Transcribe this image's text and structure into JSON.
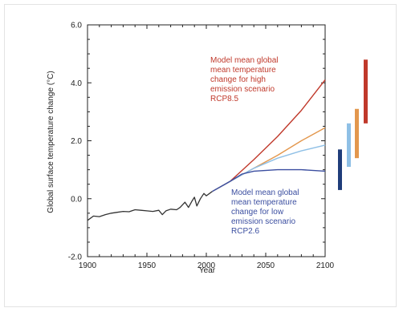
{
  "chart_data": {
    "type": "line",
    "title": "",
    "xlabel": "Year",
    "ylabel": "Global surface temperature change (°C)",
    "xlim": [
      1900,
      2100
    ],
    "ylim": [
      -2.0,
      6.0
    ],
    "x_ticks": [
      1900,
      1950,
      2000,
      2050,
      2100
    ],
    "y_ticks": [
      -2.0,
      0.0,
      2.0,
      4.0,
      6.0
    ],
    "x_tick_labels": [
      "1900",
      "1950",
      "2000",
      "2050",
      "2100"
    ],
    "y_tick_labels": [
      "-2.0",
      "0.0",
      "2.0",
      "4.0",
      "6.0"
    ],
    "grid": false,
    "series": [
      {
        "name": "",
        "color": "#333333",
        "points": [
          [
            1900,
            -0.75
          ],
          [
            1905,
            -0.6
          ],
          [
            1910,
            -0.62
          ],
          [
            1915,
            -0.55
          ],
          [
            1920,
            -0.5
          ],
          [
            1925,
            -0.47
          ],
          [
            1930,
            -0.44
          ],
          [
            1935,
            -0.45
          ],
          [
            1940,
            -0.38
          ],
          [
            1945,
            -0.4
          ],
          [
            1950,
            -0.42
          ],
          [
            1955,
            -0.44
          ],
          [
            1960,
            -0.4
          ],
          [
            1963,
            -0.55
          ],
          [
            1966,
            -0.42
          ],
          [
            1970,
            -0.36
          ],
          [
            1975,
            -0.38
          ],
          [
            1978,
            -0.3
          ],
          [
            1982,
            -0.12
          ],
          [
            1985,
            -0.3
          ],
          [
            1988,
            -0.08
          ],
          [
            1990,
            0.05
          ],
          [
            1992,
            -0.25
          ],
          [
            1995,
            0.0
          ],
          [
            1998,
            0.18
          ],
          [
            2000,
            0.1
          ],
          [
            2005,
            0.25
          ]
        ]
      },
      {
        "name": "RCP8.5",
        "color": "#c0392b",
        "points": [
          [
            2005,
            0.25
          ],
          [
            2020,
            0.6
          ],
          [
            2040,
            1.35
          ],
          [
            2060,
            2.15
          ],
          [
            2080,
            3.05
          ],
          [
            2100,
            4.1
          ]
        ]
      },
      {
        "name": "",
        "color": "#e3974d",
        "points": [
          [
            2005,
            0.25
          ],
          [
            2020,
            0.6
          ],
          [
            2040,
            1.05
          ],
          [
            2060,
            1.5
          ],
          [
            2080,
            2.0
          ],
          [
            2100,
            2.45
          ]
        ]
      },
      {
        "name": "",
        "color": "#8fc0e6",
        "points": [
          [
            2005,
            0.25
          ],
          [
            2020,
            0.6
          ],
          [
            2040,
            1.05
          ],
          [
            2060,
            1.4
          ],
          [
            2080,
            1.65
          ],
          [
            2100,
            1.85
          ]
        ]
      },
      {
        "name": "RCP2.6",
        "color": "#3b4ea0",
        "points": [
          [
            2005,
            0.25
          ],
          [
            2020,
            0.6
          ],
          [
            2030,
            0.85
          ],
          [
            2040,
            0.95
          ],
          [
            2060,
            1.0
          ],
          [
            2080,
            1.0
          ],
          [
            2100,
            0.95
          ]
        ]
      }
    ],
    "range_bars": [
      {
        "color": "#1f3d7a",
        "low": 0.3,
        "high": 1.7
      },
      {
        "color": "#8fc0e6",
        "low": 1.1,
        "high": 2.6
      },
      {
        "color": "#e3974d",
        "low": 1.4,
        "high": 3.1
      },
      {
        "color": "#c0392b",
        "low": 2.6,
        "high": 4.8
      }
    ],
    "annotations": [
      {
        "color": "#c0392b",
        "lines": [
          "Model mean global",
          "mean temperature",
          "change for high",
          "emission scenario",
          "RCP8.5"
        ]
      },
      {
        "color": "#3b4ea0",
        "lines": [
          "Model mean global",
          "mean temperature",
          "change for low",
          "emission scenario",
          "RCP2.6"
        ]
      }
    ]
  }
}
